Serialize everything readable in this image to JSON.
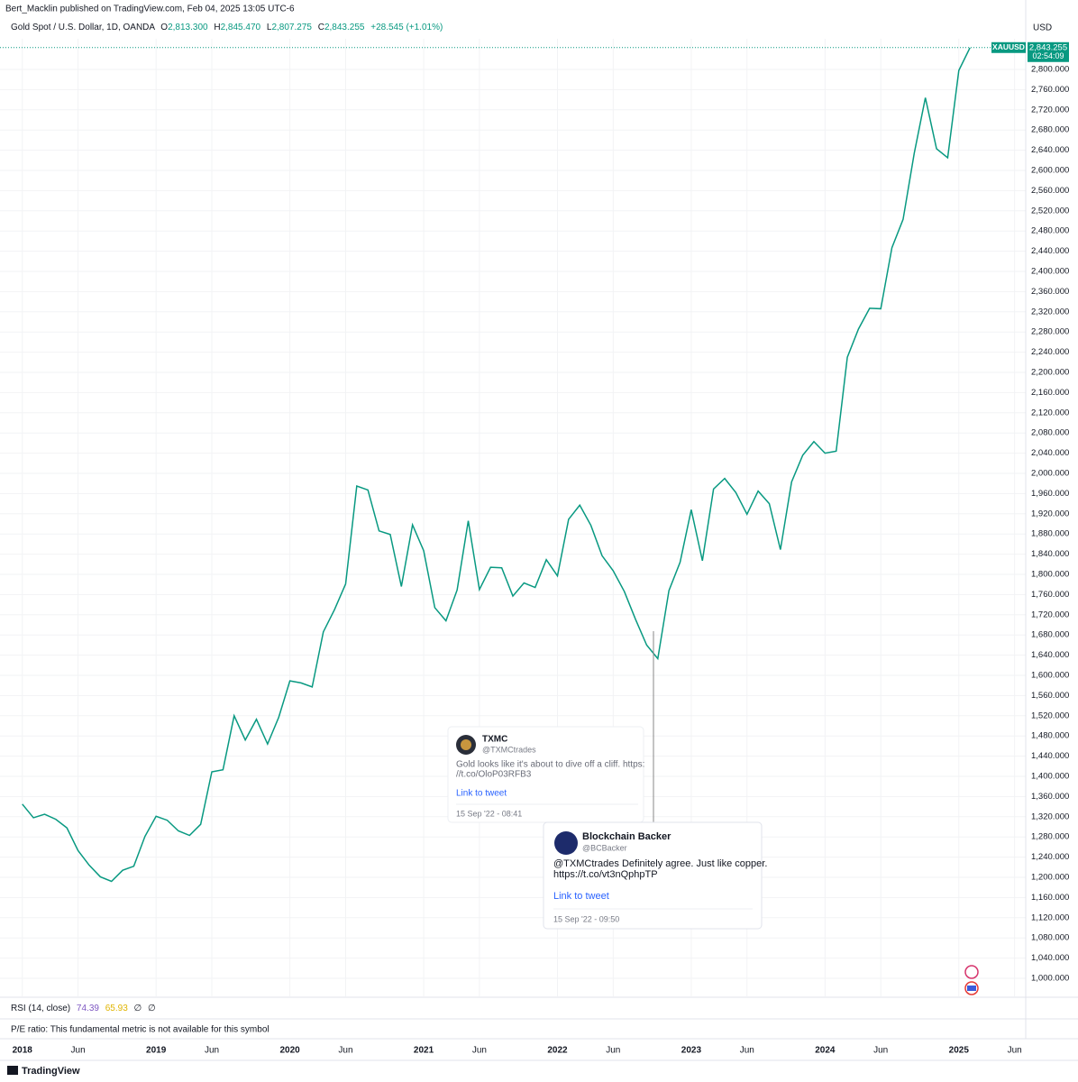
{
  "header": {
    "published": "Bert_Macklin published on TradingView.com, Feb 04, 2025 13:05 UTC-6",
    "symbol": "Gold Spot / U.S. Dollar, 1D, OANDA",
    "ohlc": [
      {
        "label": "O",
        "value": "2,813.300"
      },
      {
        "label": "H",
        "value": "2,845.470"
      },
      {
        "label": "L",
        "value": "2,807.275"
      },
      {
        "label": "C",
        "value": "2,843.255"
      }
    ],
    "change": "+28.545 (+1.01%)",
    "currency": "USD"
  },
  "chart_data": {
    "type": "line",
    "x": [
      "2018-01",
      "2018-02",
      "2018-03",
      "2018-04",
      "2018-05",
      "2018-06",
      "2018-07",
      "2018-08",
      "2018-09",
      "2018-10",
      "2018-11",
      "2018-12",
      "2019-01",
      "2019-02",
      "2019-03",
      "2019-04",
      "2019-05",
      "2019-06",
      "2019-07",
      "2019-08",
      "2019-09",
      "2019-10",
      "2019-11",
      "2019-12",
      "2020-01",
      "2020-02",
      "2020-03",
      "2020-04",
      "2020-05",
      "2020-06",
      "2020-07",
      "2020-08",
      "2020-09",
      "2020-10",
      "2020-11",
      "2020-12",
      "2021-01",
      "2021-02",
      "2021-03",
      "2021-04",
      "2021-05",
      "2021-06",
      "2021-07",
      "2021-08",
      "2021-09",
      "2021-10",
      "2021-11",
      "2021-12",
      "2022-01",
      "2022-02",
      "2022-03",
      "2022-04",
      "2022-05",
      "2022-06",
      "2022-07",
      "2022-08",
      "2022-09",
      "2022-10",
      "2022-11",
      "2022-12",
      "2023-01",
      "2023-02",
      "2023-03",
      "2023-04",
      "2023-05",
      "2023-06",
      "2023-07",
      "2023-08",
      "2023-09",
      "2023-10",
      "2023-11",
      "2023-12",
      "2024-01",
      "2024-02",
      "2024-03",
      "2024-04",
      "2024-05",
      "2024-06",
      "2024-07",
      "2024-08",
      "2024-09",
      "2024-10",
      "2024-11",
      "2024-12",
      "2025-01",
      "2025-02"
    ],
    "series": [
      {
        "name": "XAUUSD",
        "color": "#089981",
        "values": [
          1345,
          1318,
          1325,
          1315,
          1298,
          1253,
          1224,
          1201,
          1192,
          1214,
          1222,
          1281,
          1321,
          1313,
          1292,
          1283,
          1305,
          1409,
          1413,
          1520,
          1472,
          1513,
          1464,
          1517,
          1589,
          1585,
          1577,
          1686,
          1730,
          1781,
          1975,
          1967,
          1886,
          1879,
          1776,
          1898,
          1847,
          1734,
          1708,
          1769,
          1906,
          1770,
          1814,
          1813,
          1757,
          1783,
          1774,
          1829,
          1797,
          1909,
          1937,
          1897,
          1837,
          1807,
          1766,
          1711,
          1660,
          1633,
          1768,
          1824,
          1928,
          1827,
          1969,
          1990,
          1962,
          1919,
          1965,
          1940,
          1849,
          1983,
          2036,
          2063,
          2040,
          2044,
          2230,
          2286,
          2327,
          2326,
          2447,
          2503,
          2634,
          2744,
          2643,
          2625,
          2798,
          2843
        ]
      }
    ],
    "last_price": {
      "value": 2843.255,
      "label": "2,843.255",
      "countdown": "02:54:09"
    },
    "xlim": [
      "2017-11",
      "2025-07"
    ],
    "xticks": [
      {
        "value": "2018-01",
        "label": "2018"
      },
      {
        "value": "2018-06",
        "label": "Jun"
      },
      {
        "value": "2019-01",
        "label": "2019"
      },
      {
        "value": "2019-06",
        "label": "Jun"
      },
      {
        "value": "2020-01",
        "label": "2020"
      },
      {
        "value": "2020-06",
        "label": "Jun"
      },
      {
        "value": "2021-01",
        "label": "2021"
      },
      {
        "value": "2021-06",
        "label": "Jun"
      },
      {
        "value": "2022-01",
        "label": "2022"
      },
      {
        "value": "2022-06",
        "label": "Jun"
      },
      {
        "value": "2023-01",
        "label": "2023"
      },
      {
        "value": "2023-06",
        "label": "Jun"
      },
      {
        "value": "2024-01",
        "label": "2024"
      },
      {
        "value": "2024-06",
        "label": "Jun"
      },
      {
        "value": "2025-01",
        "label": "2025"
      },
      {
        "value": "2025-06",
        "label": "Jun"
      }
    ],
    "ylim": [
      964.3,
      2860.7
    ],
    "yticks": [
      {
        "value": 1000,
        "label": "1,000.000"
      },
      {
        "value": 1040,
        "label": "1,040.000"
      },
      {
        "value": 1080,
        "label": "1,080.000"
      },
      {
        "value": 1120,
        "label": "1,120.000"
      },
      {
        "value": 1160,
        "label": "1,160.000"
      },
      {
        "value": 1200,
        "label": "1,200.000"
      },
      {
        "value": 1240,
        "label": "1,240.000"
      },
      {
        "value": 1280,
        "label": "1,280.000"
      },
      {
        "value": 1320,
        "label": "1,320.000"
      },
      {
        "value": 1360,
        "label": "1,360.000"
      },
      {
        "value": 1400,
        "label": "1,400.000"
      },
      {
        "value": 1440,
        "label": "1,440.000"
      },
      {
        "value": 1480,
        "label": "1,480.000"
      },
      {
        "value": 1520,
        "label": "1,520.000"
      },
      {
        "value": 1560,
        "label": "1,560.000"
      },
      {
        "value": 1600,
        "label": "1,600.000"
      },
      {
        "value": 1640,
        "label": "1,640.000"
      },
      {
        "value": 1680,
        "label": "1,680.000"
      },
      {
        "value": 1720,
        "label": "1,720.000"
      },
      {
        "value": 1760,
        "label": "1,760.000"
      },
      {
        "value": 1800,
        "label": "1,800.000"
      },
      {
        "value": 1840,
        "label": "1,840.000"
      },
      {
        "value": 1880,
        "label": "1,880.000"
      },
      {
        "value": 1920,
        "label": "1,920.000"
      },
      {
        "value": 1960,
        "label": "1,960.000"
      },
      {
        "value": 2000,
        "label": "2,000.000"
      },
      {
        "value": 2040,
        "label": "2,040.000"
      },
      {
        "value": 2080,
        "label": "2,080.000"
      },
      {
        "value": 2120,
        "label": "2,120.000"
      },
      {
        "value": 2160,
        "label": "2,160.000"
      },
      {
        "value": 2200,
        "label": "2,200.000"
      },
      {
        "value": 2240,
        "label": "2,240.000"
      },
      {
        "value": 2280,
        "label": "2,280.000"
      },
      {
        "value": 2320,
        "label": "2,320.000"
      },
      {
        "value": 2360,
        "label": "2,360.000"
      },
      {
        "value": 2400,
        "label": "2,400.000"
      },
      {
        "value": 2440,
        "label": "2,440.000"
      },
      {
        "value": 2480,
        "label": "2,480.000"
      },
      {
        "value": 2520,
        "label": "2,520.000"
      },
      {
        "value": 2560,
        "label": "2,560.000"
      },
      {
        "value": 2600,
        "label": "2,600.000"
      },
      {
        "value": 2640,
        "label": "2,640.000"
      },
      {
        "value": 2680,
        "label": "2,680.000"
      },
      {
        "value": 2720,
        "label": "2,720.000"
      },
      {
        "value": 2760,
        "label": "2,760.000"
      },
      {
        "value": 2800,
        "label": "2,800.000"
      }
    ],
    "grid": true
  },
  "indicators": {
    "rsi": {
      "label": "RSI (14, close)",
      "values": [
        "74.39",
        "65.93",
        "∅",
        "∅"
      ]
    },
    "pe": "P/E ratio: This fundamental metric is not available for this symbol"
  },
  "tweets": [
    {
      "name": "TXMC",
      "handle": "@TXMCtrades",
      "lines": [
        "Gold looks like it's about to dive off a cliff. https:",
        "//t.co/OloP03RFB3"
      ],
      "link": "Link to tweet",
      "time": "15 Sep '22 - 08:41"
    },
    {
      "name": "Blockchain Backer",
      "handle": "@BCBacker",
      "lines": [
        "@TXMCtrades Definitely agree. Just like copper.",
        "https://t.co/vt3nQphpTP"
      ],
      "link": "Link to tweet",
      "time": "15 Sep '22 - 09:50"
    }
  ],
  "footer": "TradingView"
}
